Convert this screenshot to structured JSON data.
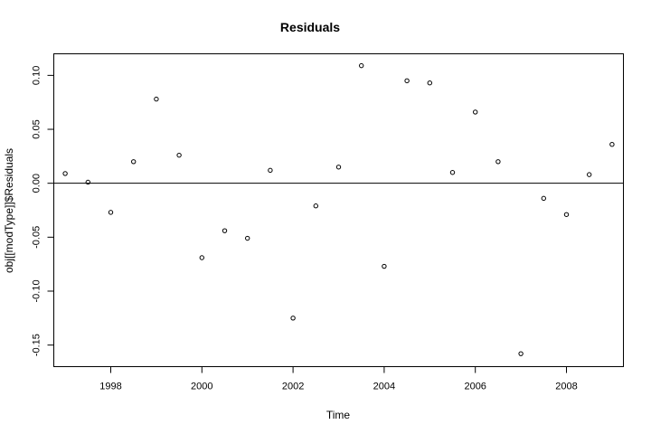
{
  "chart_data": {
    "type": "scatter",
    "title": "Residuals",
    "xlabel": "Time",
    "ylabel": "obj[[modType]]$Residuals",
    "xlim": [
      1996.75,
      2009.25
    ],
    "ylim": [
      -0.17,
      0.12
    ],
    "xticks": [
      1998,
      2000,
      2002,
      2004,
      2006,
      2008
    ],
    "xtick_labels": [
      "1998",
      "2000",
      "2002",
      "2004",
      "2006",
      "2008"
    ],
    "yticks": [
      -0.15,
      -0.1,
      -0.05,
      0.0,
      0.05,
      0.1
    ],
    "ytick_labels": [
      "-0.15",
      "-0.10",
      "-0.05",
      "0.00",
      "0.05",
      "0.10"
    ],
    "hline": 0,
    "grid": false,
    "legend": "none",
    "marker": "open-circle",
    "x": [
      1997.0,
      1997.5,
      1998.0,
      1998.5,
      1999.0,
      1999.5,
      2000.0,
      2000.5,
      2001.0,
      2001.5,
      2002.0,
      2002.5,
      2003.0,
      2003.5,
      2004.0,
      2004.5,
      2005.0,
      2005.5,
      2006.0,
      2006.5,
      2007.0,
      2007.5,
      2008.0,
      2008.5,
      2009.0
    ],
    "y": [
      0.009,
      0.001,
      -0.027,
      0.02,
      0.078,
      0.026,
      -0.069,
      -0.044,
      -0.051,
      0.012,
      -0.125,
      -0.021,
      0.015,
      0.109,
      -0.077,
      0.095,
      0.093,
      0.01,
      0.066,
      0.02,
      -0.158,
      -0.014,
      -0.029,
      0.008,
      0.036
    ]
  }
}
